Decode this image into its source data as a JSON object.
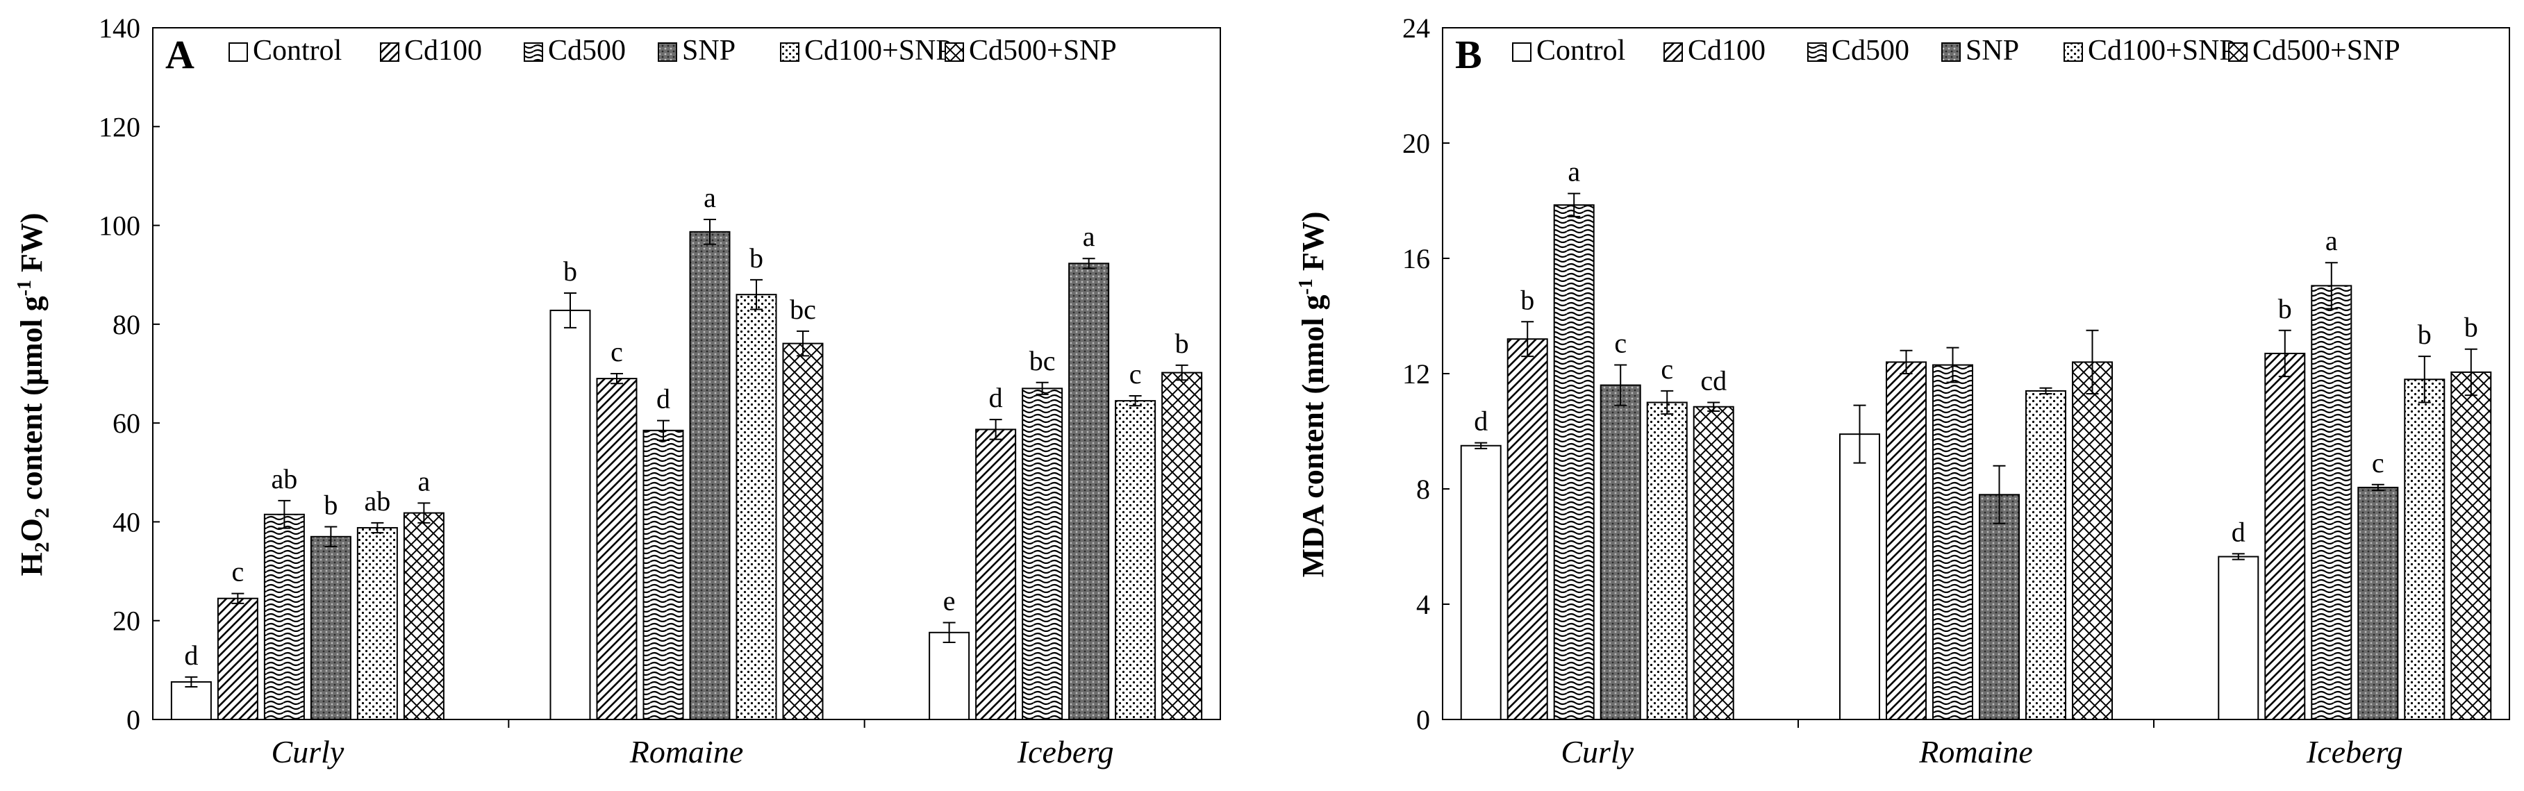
{
  "chart_data": [
    {
      "panel_label": "A",
      "type": "bar",
      "ylabel_parts": {
        "pre": "H",
        "sub": "2",
        "mid": "O",
        "sub2": "2",
        "post": " content  (μmol  g",
        "sup": "-1",
        "tail": " FW)"
      },
      "ylim": [
        0,
        140
      ],
      "yticks": [
        0,
        20,
        40,
        60,
        80,
        100,
        120,
        140
      ],
      "categories": [
        "Curly",
        "Romaine",
        "Iceberg"
      ],
      "series": [
        {
          "name": "Control",
          "pattern": "none",
          "values": [
            7.6,
            82.8,
            17.6
          ],
          "errors": [
            1.0,
            3.5,
            2.0
          ],
          "letters": [
            "d",
            "b",
            "e"
          ]
        },
        {
          "name": "Cd100",
          "pattern": "diag",
          "values": [
            24.5,
            69.0,
            58.7
          ],
          "errors": [
            1.0,
            1.0,
            2.0
          ],
          "letters": [
            "c",
            "c",
            "d"
          ]
        },
        {
          "name": "Cd500",
          "pattern": "wave",
          "values": [
            41.5,
            58.5,
            67.0
          ],
          "errors": [
            2.8,
            2.0,
            1.2
          ],
          "letters": [
            "ab",
            "d",
            "bc"
          ]
        },
        {
          "name": "SNP",
          "pattern": "dark",
          "values": [
            37.0,
            98.7,
            92.3
          ],
          "errors": [
            2.0,
            2.5,
            1.0
          ],
          "letters": [
            "b",
            "a",
            "a"
          ]
        },
        {
          "name": "Cd100+SNP",
          "pattern": "dots",
          "values": [
            38.8,
            86.0,
            64.5
          ],
          "errors": [
            1.0,
            3.0,
            1.0
          ],
          "letters": [
            "ab",
            "b",
            "c"
          ]
        },
        {
          "name": "Cd500+SNP",
          "pattern": "cross",
          "values": [
            41.8,
            76.1,
            70.2
          ],
          "errors": [
            2.0,
            2.5,
            1.5
          ],
          "letters": [
            "a",
            "bc",
            "b"
          ]
        }
      ]
    },
    {
      "panel_label": "B",
      "type": "bar",
      "ylabel_parts": {
        "pre": "MDA content  (nmol  g",
        "sup": "-1",
        "tail": " FW)"
      },
      "ylim": [
        0,
        24
      ],
      "yticks": [
        0,
        4,
        8,
        12,
        16,
        20,
        24
      ],
      "categories": [
        "Curly",
        "Romaine",
        "Iceberg"
      ],
      "series": [
        {
          "name": "Control",
          "pattern": "none",
          "values": [
            9.5,
            9.9,
            5.65
          ],
          "errors": [
            0.1,
            1.0,
            0.1
          ],
          "letters": [
            "d",
            "",
            "d"
          ]
        },
        {
          "name": "Cd100",
          "pattern": "diag",
          "values": [
            13.2,
            12.4,
            12.7
          ],
          "errors": [
            0.6,
            0.4,
            0.8
          ],
          "letters": [
            "b",
            "",
            "b"
          ]
        },
        {
          "name": "Cd500",
          "pattern": "wave",
          "values": [
            17.85,
            12.3,
            15.05
          ],
          "errors": [
            0.4,
            0.6,
            0.8
          ],
          "letters": [
            "a",
            "",
            "a"
          ]
        },
        {
          "name": "SNP",
          "pattern": "dark",
          "values": [
            11.6,
            7.8,
            8.05
          ],
          "errors": [
            0.7,
            1.0,
            0.1
          ],
          "letters": [
            "c",
            "",
            "c"
          ]
        },
        {
          "name": "Cd100+SNP",
          "pattern": "dots",
          "values": [
            11.0,
            11.4,
            11.8
          ],
          "errors": [
            0.4,
            0.1,
            0.8
          ],
          "letters": [
            "c",
            "",
            "b"
          ]
        },
        {
          "name": "Cd500+SNP",
          "pattern": "cross",
          "values": [
            10.85,
            12.4,
            12.05
          ],
          "errors": [
            0.15,
            1.1,
            0.8
          ],
          "letters": [
            "cd",
            "",
            "b"
          ]
        }
      ]
    }
  ]
}
